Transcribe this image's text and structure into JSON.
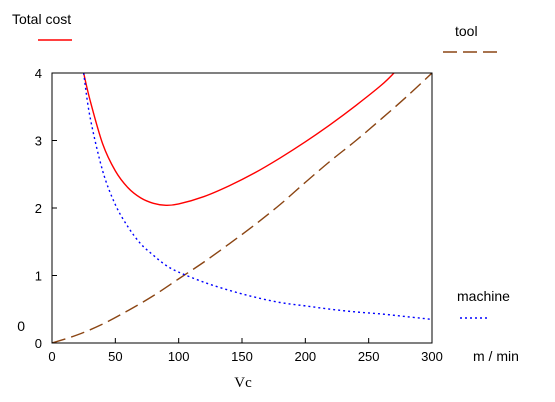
{
  "chart_data": {
    "type": "line",
    "xlabel": "Vc",
    "xunit": "m  / min",
    "xlim": [
      0,
      300
    ],
    "ylim": [
      0,
      4
    ],
    "xticks": [
      "0",
      "50",
      "100",
      "150",
      "200",
      "250",
      "300"
    ],
    "yticks": [
      "0",
      "1",
      "2",
      "3",
      "4"
    ],
    "extra_label": "0",
    "grid": false,
    "series": [
      {
        "name": "Total cost",
        "color": "#ff0000",
        "style": "solid",
        "x": [
          25,
          30,
          40,
          50,
          60,
          70,
          80,
          90,
          100,
          120,
          140,
          160,
          180,
          200,
          220,
          240,
          260,
          270
        ],
        "y": [
          4.0,
          3.6,
          2.95,
          2.55,
          2.3,
          2.15,
          2.07,
          2.04,
          2.06,
          2.17,
          2.33,
          2.52,
          2.74,
          2.98,
          3.24,
          3.52,
          3.82,
          4.0
        ]
      },
      {
        "name": "tool",
        "color": "#8b4513",
        "style": "dashed",
        "x": [
          0,
          20,
          40,
          60,
          80,
          100,
          120,
          140,
          160,
          180,
          200,
          220,
          240,
          260,
          280,
          300
        ],
        "y": [
          0.0,
          0.12,
          0.28,
          0.48,
          0.7,
          0.95,
          1.2,
          1.47,
          1.75,
          2.05,
          2.38,
          2.7,
          3.0,
          3.32,
          3.65,
          4.0
        ]
      },
      {
        "name": "machine",
        "color": "#0000ff",
        "style": "dotted",
        "x": [
          25,
          30,
          40,
          50,
          60,
          70,
          80,
          90,
          100,
          120,
          140,
          160,
          180,
          200,
          220,
          240,
          260,
          280,
          300
        ],
        "y": [
          4.0,
          3.35,
          2.55,
          2.05,
          1.72,
          1.47,
          1.3,
          1.15,
          1.05,
          0.9,
          0.78,
          0.68,
          0.6,
          0.55,
          0.5,
          0.46,
          0.43,
          0.39,
          0.35
        ]
      }
    ]
  }
}
